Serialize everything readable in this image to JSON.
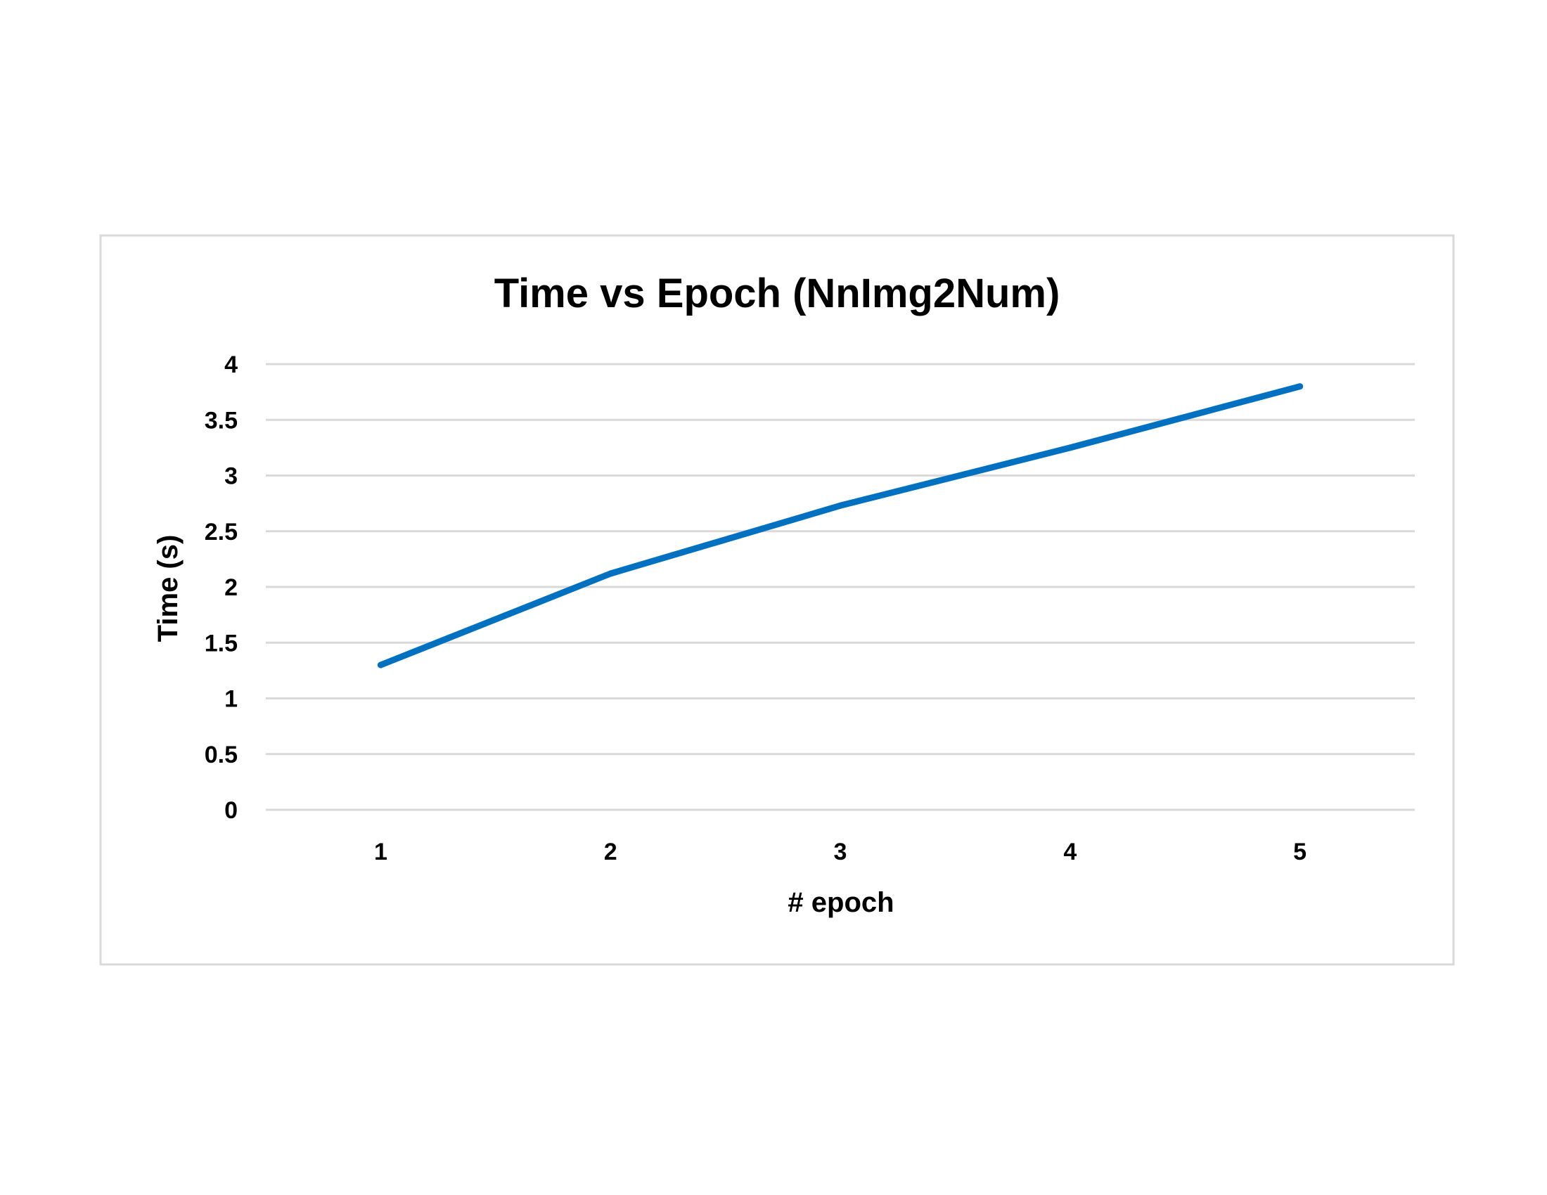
{
  "chart_data": {
    "type": "line",
    "title": "Time vs Epoch (NnImg2Num)",
    "xlabel": "# epoch",
    "ylabel": "Time (s)",
    "categories": [
      "1",
      "2",
      "3",
      "4",
      "5"
    ],
    "series": [
      {
        "values": [
          1.3,
          2.12,
          2.73,
          3.25,
          3.8
        ],
        "color": "#0070C0"
      }
    ],
    "ylim": [
      0,
      4
    ],
    "yticks": [
      "0",
      "0.5",
      "1",
      "1.5",
      "2",
      "2.5",
      "3",
      "3.5",
      "4"
    ],
    "grid": true,
    "legend": "none",
    "colors": {
      "gridline": "#D9D9D9",
      "frame": "#D9D9D9",
      "series": "#0070C0"
    }
  }
}
